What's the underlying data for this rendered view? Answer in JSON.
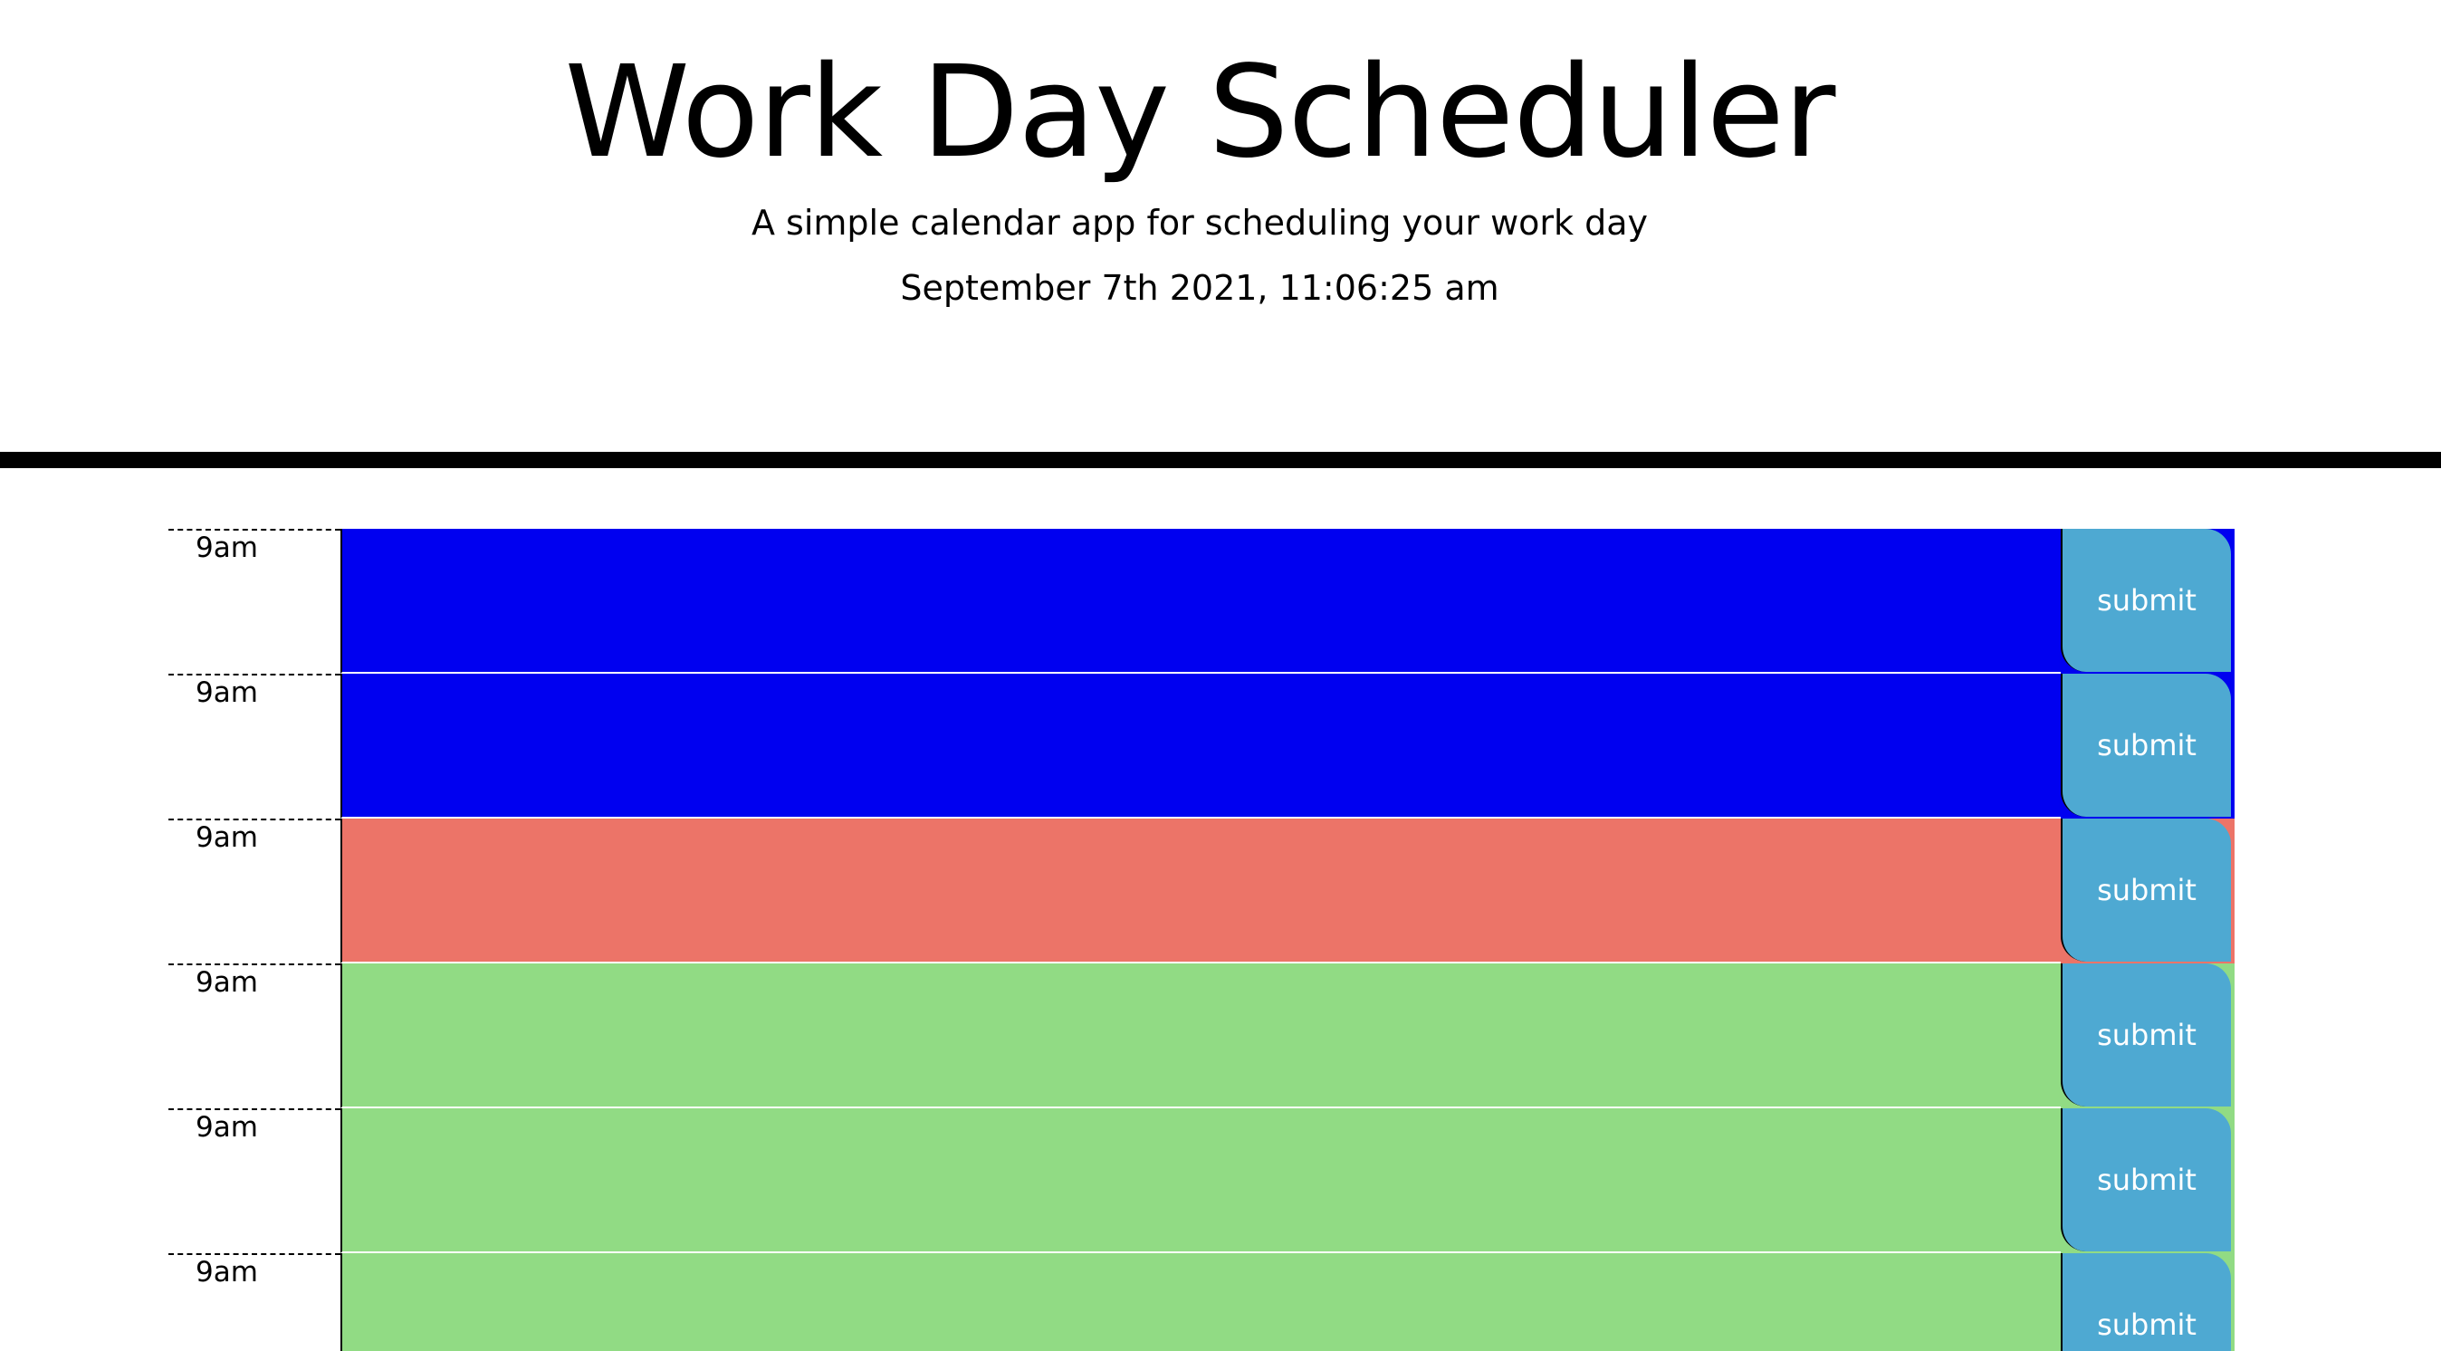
{
  "header": {
    "title": "Work Day Scheduler",
    "subtitle": "A simple calendar app for scheduling your work day",
    "current_day": "September 7th 2021, 11:06:25 am"
  },
  "colors": {
    "past": "#0000f0",
    "present": "#ec7468",
    "future": "#91db84",
    "save_button": "#4ea9d2"
  },
  "timeblocks": [
    {
      "hour": "9am",
      "status": "past",
      "text": "",
      "button_label": "submit"
    },
    {
      "hour": "9am",
      "status": "past",
      "text": "",
      "button_label": "submit"
    },
    {
      "hour": "9am",
      "status": "present",
      "text": "",
      "button_label": "submit"
    },
    {
      "hour": "9am",
      "status": "future",
      "text": "",
      "button_label": "submit"
    },
    {
      "hour": "9am",
      "status": "future",
      "text": "",
      "button_label": "submit"
    },
    {
      "hour": "9am",
      "status": "future",
      "text": "",
      "button_label": "submit"
    }
  ]
}
